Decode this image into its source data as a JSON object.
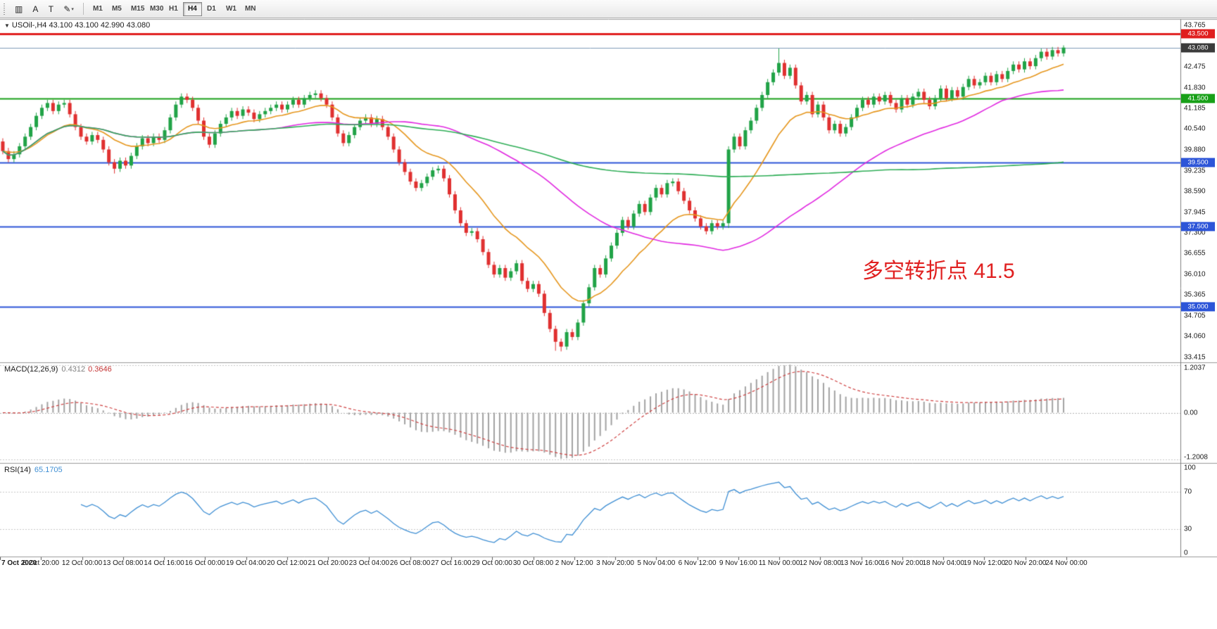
{
  "toolbar": {
    "tools": [
      {
        "name": "charts-grid-icon",
        "glyph": "▥",
        "dropdown": false
      },
      {
        "name": "arrow-tool",
        "glyph": "A",
        "dropdown": false
      },
      {
        "name": "text-tool",
        "glyph": "T",
        "dropdown": false
      },
      {
        "name": "shapes-tool",
        "glyph": "✎",
        "dropdown": true
      }
    ],
    "timeframes": [
      "M1",
      "M5",
      "M15",
      "M30",
      "H1",
      "H4",
      "D1",
      "W1",
      "MN"
    ],
    "active_timeframe": "H4"
  },
  "main_chart": {
    "collapse_icon": "▼",
    "title": "USOil-,H4 43.100 43.100 42.990 43.080",
    "annotation": {
      "text": "多空转折点 41.5",
      "color": "#e02020"
    },
    "current_price": {
      "value": 43.08,
      "label": "43.080",
      "badge_color": "#3b3b3b",
      "line_color": "#7f9db9"
    },
    "hlines": [
      {
        "value": 43.5,
        "label": "43.500",
        "color": "#e01f1f",
        "width": 3
      },
      {
        "value": 41.5,
        "label": "41.500",
        "color": "#18a018",
        "width": 2
      },
      {
        "value": 39.5,
        "label": "39.500",
        "color": "#2d55d8",
        "width": 2
      },
      {
        "value": 37.5,
        "label": "37.500",
        "color": "#2d55d8",
        "width": 2
      },
      {
        "value": 35.0,
        "label": "35.000",
        "color": "#2d55d8",
        "width": 2
      }
    ],
    "axis_labels": [
      "43.765",
      "42.475",
      "41.830",
      "41.185",
      "40.540",
      "39.880",
      "39.235",
      "38.590",
      "37.945",
      "37.300",
      "36.655",
      "36.010",
      "35.365",
      "34.705",
      "34.060",
      "33.415"
    ]
  },
  "macd_panel": {
    "title": "MACD(12,26,9)",
    "value_main": "0.4312",
    "value_signal": "0.3646",
    "axis_top": "1.2037",
    "axis_mid": "0.00",
    "axis_bottom": "-1.2008"
  },
  "rsi_panel": {
    "title": "RSI(14)",
    "value": "65.1705",
    "axis_labels": [
      "100",
      "70",
      "30",
      "0"
    ],
    "levels": [
      70,
      30
    ]
  },
  "time_axis": [
    "7 Oct 2020",
    "8 Oct 20:00",
    "12 Oct 00:00",
    "13 Oct 08:00",
    "14 Oct 16:00",
    "16 Oct 00:00",
    "19 Oct 04:00",
    "20 Oct 12:00",
    "21 Oct 20:00",
    "23 Oct 04:00",
    "26 Oct 08:00",
    "27 Oct 16:00",
    "29 Oct 00:00",
    "30 Oct 08:00",
    "2 Nov 12:00",
    "3 Nov 20:00",
    "5 Nov 04:00",
    "6 Nov 12:00",
    "9 Nov 16:00",
    "11 Nov 00:00",
    "12 Nov 08:00",
    "13 Nov 16:00",
    "16 Nov 20:00",
    "18 Nov 04:00",
    "19 Nov 12:00",
    "20 Nov 20:00",
    "24 Nov 00:00"
  ],
  "chart_data": {
    "type": "candlestick",
    "symbol": "USOil-",
    "timeframe": "H4",
    "ohlc_current": {
      "open": "43.100",
      "high": "43.100",
      "low": "42.990",
      "close": "43.080"
    },
    "ylim": [
      33.28,
      43.95
    ],
    "first_open": 40.15,
    "default_wick": 0.1,
    "closes": [
      39.85,
      39.6,
      39.75,
      40.0,
      40.3,
      40.6,
      40.95,
      41.2,
      41.35,
      41.1,
      41.3,
      41.35,
      41.0,
      40.6,
      40.3,
      40.15,
      40.35,
      40.2,
      39.9,
      39.5,
      39.3,
      39.55,
      39.4,
      39.7,
      40.0,
      40.25,
      40.1,
      40.3,
      40.2,
      40.5,
      40.9,
      41.3,
      41.55,
      41.45,
      41.2,
      40.8,
      40.3,
      40.05,
      40.4,
      40.7,
      40.9,
      41.1,
      40.95,
      41.15,
      41.05,
      40.85,
      41.0,
      41.1,
      41.2,
      41.3,
      41.15,
      41.3,
      41.45,
      41.3,
      41.5,
      41.6,
      41.65,
      41.5,
      41.3,
      40.9,
      40.4,
      40.1,
      40.35,
      40.6,
      40.8,
      40.9,
      40.7,
      40.85,
      40.6,
      40.3,
      39.9,
      39.5,
      39.2,
      38.9,
      38.7,
      38.85,
      39.05,
      39.25,
      39.3,
      39.0,
      38.5,
      38.0,
      37.6,
      37.3,
      37.35,
      37.1,
      36.7,
      36.3,
      36.0,
      36.2,
      35.9,
      36.1,
      36.35,
      35.8,
      35.55,
      35.7,
      35.4,
      34.8,
      34.3,
      33.9,
      33.75,
      34.2,
      34.05,
      34.5,
      35.1,
      35.6,
      36.2,
      36.0,
      36.5,
      36.9,
      37.3,
      37.7,
      37.5,
      37.9,
      38.2,
      37.95,
      38.4,
      38.7,
      38.5,
      38.85,
      38.9,
      38.6,
      38.3,
      38.0,
      37.75,
      37.5,
      37.35,
      37.6,
      37.5,
      37.6,
      39.9,
      40.3,
      40.0,
      40.5,
      40.8,
      41.2,
      41.6,
      42.0,
      42.3,
      42.6,
      42.2,
      42.45,
      41.9,
      41.4,
      41.6,
      41.0,
      41.3,
      40.9,
      40.5,
      40.7,
      40.4,
      40.6,
      40.9,
      41.2,
      41.45,
      41.3,
      41.55,
      41.4,
      41.6,
      41.35,
      41.15,
      41.5,
      41.3,
      41.55,
      41.7,
      41.45,
      41.25,
      41.5,
      41.8,
      41.5,
      41.75,
      41.55,
      41.85,
      42.1,
      41.9,
      42.0,
      42.2,
      42.0,
      42.25,
      42.1,
      42.35,
      42.55,
      42.4,
      42.65,
      42.5,
      42.75,
      42.95,
      42.8,
      43.0,
      42.9,
      43.08
    ],
    "wick_overrides": {
      "20": {
        "l": 39.15
      },
      "99": {
        "l": 33.62
      },
      "100": {
        "l": 33.6
      },
      "130": {
        "h": 40.0,
        "l": 37.45
      },
      "139": {
        "h": 43.05
      },
      "190": {
        "h": 43.15
      }
    },
    "overlays": [
      {
        "name": "ma-fast",
        "type": "ema",
        "period": 16,
        "color": "#e6971e"
      },
      {
        "name": "ma-mid",
        "type": "sma",
        "period": 50,
        "color": "#e128e1"
      },
      {
        "name": "ma-slow",
        "type": "sma",
        "period": 130,
        "color": "#2fae57"
      }
    ],
    "indicators": [
      {
        "name": "macd",
        "params": [
          12,
          26,
          9
        ],
        "histogram_color": "#a2a2a2",
        "signal_color": "#cf4040"
      },
      {
        "name": "rsi",
        "period": 14,
        "color": "#3f8fd4",
        "levels": [
          70,
          30
        ]
      }
    ],
    "candle_colors": {
      "up": "#21a347",
      "down": "#e03030"
    }
  }
}
